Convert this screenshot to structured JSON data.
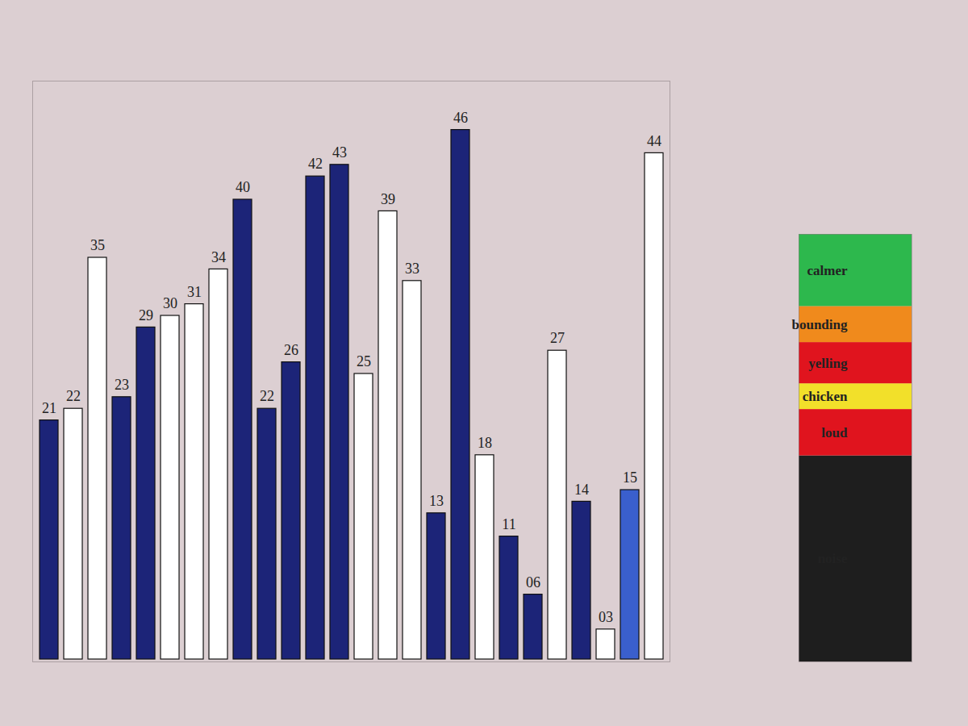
{
  "chart_data": [
    {
      "type": "bar",
      "categories": [
        null,
        null,
        null,
        null,
        null,
        null,
        null,
        null,
        null,
        null,
        null,
        null,
        null,
        null,
        null,
        null,
        null,
        null,
        null,
        null,
        null,
        null,
        null,
        null,
        null,
        null
      ],
      "values": [
        21,
        22,
        35,
        23,
        29,
        30,
        31,
        34,
        40,
        22,
        26,
        42,
        43,
        25,
        39,
        33,
        13,
        46,
        18,
        11,
        6,
        27,
        14,
        3,
        15,
        44
      ],
      "value_labels": [
        "21",
        "22",
        "35",
        "23",
        "29",
        "30",
        "31",
        "34",
        "40",
        "22",
        "26",
        "42",
        "43",
        "25",
        "39",
        "33",
        "13",
        "46",
        "18",
        "11",
        "06",
        "27",
        "14",
        "03",
        "15",
        "44"
      ],
      "colors": [
        "#1c2478",
        "#ffffff",
        "#ffffff",
        "#1c2478",
        "#1c2478",
        "#ffffff",
        "#ffffff",
        "#ffffff",
        "#1c2478",
        "#1c2478",
        "#1c2478",
        "#1c2478",
        "#1c2478",
        "#ffffff",
        "#ffffff",
        "#ffffff",
        "#1c2478",
        "#1c2478",
        "#ffffff",
        "#1c2478",
        "#1c2478",
        "#ffffff",
        "#1c2478",
        "#ffffff",
        "#3a5fcd",
        "#ffffff"
      ],
      "ylim": [
        0,
        50
      ],
      "data_labels": true,
      "tick_labels": false
    },
    {
      "type": "bar",
      "stacked": true,
      "categories": [
        null
      ],
      "series": [
        {
          "name": "calmer",
          "color": "#2db84d",
          "values": [
            7
          ]
        },
        {
          "name": "bounding",
          "color": "#f08a1c",
          "values": [
            3.5
          ]
        },
        {
          "name": "yelling",
          "color": "#e0141e",
          "values": [
            4
          ]
        },
        {
          "name": "chicken",
          "color": "#f2e02a",
          "values": [
            2.5
          ]
        },
        {
          "name": "loud",
          "color": "#e0141e",
          "values": [
            4.5
          ]
        },
        {
          "name": "noise",
          "color": "#1e1e1e",
          "values": [
            20
          ]
        }
      ],
      "ylim": [
        0,
        41.5
      ],
      "tick_labels": false
    }
  ]
}
